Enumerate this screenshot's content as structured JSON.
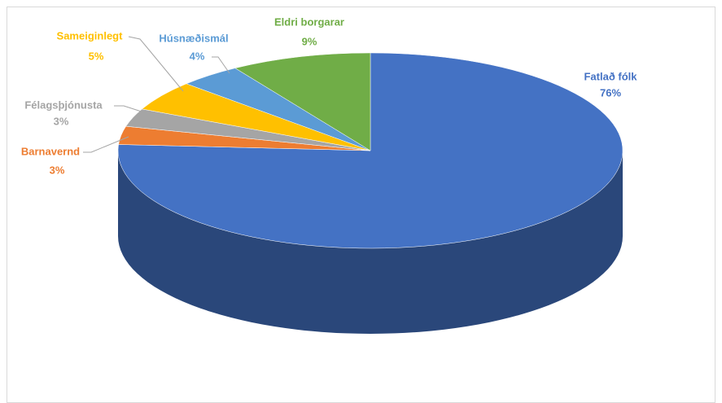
{
  "chart_data": {
    "type": "pie",
    "categories": [
      "Fatlað fólk",
      "Barnavernd",
      "Félagsþjónusta",
      "Sameiginlegt",
      "Húsnæðismál",
      "Eldri borgarar"
    ],
    "values": [
      76,
      3,
      3,
      5,
      4,
      9
    ],
    "value_labels": [
      "76%",
      "3%",
      "3%",
      "5%",
      "4%",
      "9%"
    ],
    "colors": [
      "#4472c4",
      "#ed7d31",
      "#a5a5a5",
      "#ffc000",
      "#5b9bd5",
      "#70ad47"
    ]
  }
}
